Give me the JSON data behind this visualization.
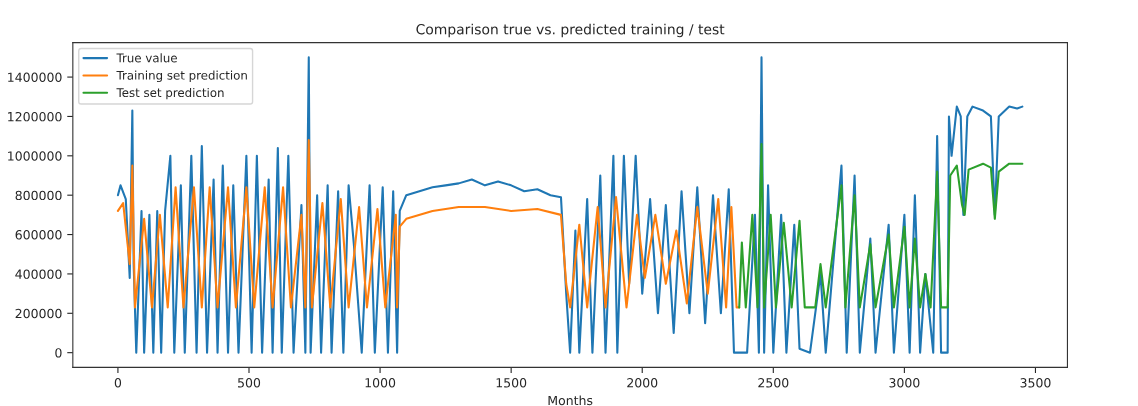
{
  "chart_data": {
    "type": "line",
    "title": "Comparison true vs. predicted training / test",
    "xlabel": "Months",
    "xlim": [
      -172,
      3622
    ],
    "xticks": [
      0,
      500,
      1000,
      1500,
      2000,
      2500,
      3000,
      3500
    ],
    "ylim": [
      -75000,
      1575000
    ],
    "yticks": [
      0,
      200000,
      400000,
      600000,
      800000,
      1000000,
      1200000,
      1400000
    ],
    "legend": "top left",
    "grid": false,
    "series": [
      {
        "name": "True value",
        "color": "#1f77b4",
        "x": [
          0,
          10,
          30,
          45,
          55,
          60,
          70,
          90,
          100,
          120,
          135,
          150,
          165,
          180,
          200,
          215,
          240,
          255,
          280,
          300,
          320,
          340,
          365,
          380,
          400,
          420,
          440,
          460,
          490,
          510,
          530,
          550,
          575,
          590,
          610,
          625,
          650,
          670,
          700,
          715,
          728,
          735,
          760,
          775,
          800,
          815,
          840,
          860,
          880,
          900,
          930,
          960,
          980,
          1010,
          1030,
          1050,
          1065,
          1075,
          1100,
          1150,
          1200,
          1250,
          1300,
          1350,
          1400,
          1450,
          1500,
          1550,
          1600,
          1650,
          1690,
          1710,
          1725,
          1745,
          1760,
          1790,
          1810,
          1840,
          1860,
          1890,
          1905,
          1930,
          1950,
          1975,
          2000,
          2030,
          2060,
          2090,
          2120,
          2150,
          2180,
          2210,
          2240,
          2270,
          2300,
          2330,
          2350,
          2400,
          2430,
          2445,
          2455,
          2465,
          2480,
          2500,
          2530,
          2550,
          2580,
          2600,
          2640,
          2680,
          2700,
          2760,
          2780,
          2810,
          2830,
          2870,
          2890,
          2940,
          2960,
          3000,
          3020,
          3040,
          3060,
          3080,
          3110,
          3125,
          3140,
          3165,
          3170,
          3180,
          3200,
          3215,
          3225,
          3240,
          3260,
          3300,
          3330,
          3345,
          3360,
          3400,
          3430,
          3450
        ],
        "values": [
          800000,
          850000,
          780000,
          380000,
          1230000,
          450000,
          0,
          720000,
          0,
          700000,
          0,
          720000,
          0,
          720000,
          1000000,
          0,
          850000,
          0,
          1000000,
          0,
          1050000,
          0,
          880000,
          0,
          950000,
          0,
          850000,
          0,
          1000000,
          0,
          1000000,
          0,
          880000,
          0,
          1040000,
          0,
          1000000,
          0,
          750000,
          0,
          1500000,
          0,
          800000,
          0,
          850000,
          0,
          820000,
          0,
          850000,
          550000,
          0,
          850000,
          0,
          840000,
          0,
          820000,
          0,
          720000,
          800000,
          820000,
          840000,
          850000,
          860000,
          880000,
          850000,
          870000,
          850000,
          820000,
          830000,
          800000,
          790000,
          300000,
          0,
          620000,
          0,
          780000,
          0,
          900000,
          0,
          1000000,
          0,
          1000000,
          350000,
          1000000,
          300000,
          780000,
          200000,
          750000,
          100000,
          820000,
          200000,
          840000,
          150000,
          800000,
          200000,
          830000,
          0,
          0,
          700000,
          0,
          1500000,
          0,
          850000,
          0,
          700000,
          0,
          650000,
          20000,
          0,
          400000,
          0,
          950000,
          0,
          900000,
          0,
          580000,
          0,
          650000,
          0,
          700000,
          0,
          800000,
          0,
          400000,
          0,
          1100000,
          0,
          0,
          1200000,
          1000000,
          1250000,
          1200000,
          700000,
          1200000,
          1250000,
          1230000,
          1200000,
          700000,
          1200000,
          1250000,
          1240000,
          1250000
        ]
      },
      {
        "name": "Training set prediction",
        "color": "#ff7f0e",
        "x": [
          0,
          20,
          45,
          55,
          65,
          100,
          130,
          160,
          190,
          220,
          250,
          290,
          320,
          350,
          380,
          420,
          450,
          490,
          520,
          560,
          590,
          630,
          660,
          700,
          715,
          728,
          740,
          780,
          810,
          850,
          880,
          920,
          950,
          990,
          1020,
          1060,
          1065,
          1075,
          1100,
          1200,
          1300,
          1400,
          1500,
          1600,
          1690,
          1710,
          1725,
          1760,
          1790,
          1830,
          1860,
          1900,
          1940,
          1980,
          2010,
          2050,
          2090,
          2130,
          2170,
          2210,
          2250,
          2290,
          2320,
          2340,
          2360,
          2370
        ],
        "values": [
          720000,
          760000,
          450000,
          950000,
          230000,
          680000,
          230000,
          700000,
          230000,
          840000,
          230000,
          840000,
          230000,
          840000,
          230000,
          840000,
          230000,
          840000,
          230000,
          840000,
          230000,
          840000,
          230000,
          700000,
          230000,
          1080000,
          230000,
          760000,
          230000,
          780000,
          230000,
          740000,
          230000,
          730000,
          230000,
          700000,
          230000,
          640000,
          680000,
          720000,
          740000,
          740000,
          720000,
          730000,
          700000,
          350000,
          230000,
          650000,
          230000,
          740000,
          230000,
          790000,
          230000,
          700000,
          380000,
          700000,
          350000,
          620000,
          250000,
          740000,
          300000,
          780000,
          230000,
          740000,
          230000,
          230000
        ]
      },
      {
        "name": "Test set prediction",
        "color": "#2ca02c",
        "x": [
          2370,
          2380,
          2395,
          2420,
          2440,
          2455,
          2465,
          2490,
          2510,
          2540,
          2570,
          2600,
          2620,
          2660,
          2680,
          2700,
          2760,
          2775,
          2810,
          2830,
          2870,
          2890,
          2940,
          2960,
          3000,
          3020,
          3040,
          3060,
          3080,
          3100,
          3125,
          3140,
          3165,
          3175,
          3200,
          3220,
          3230,
          3245,
          3300,
          3330,
          3345,
          3360,
          3400,
          3450
        ],
        "values": [
          230000,
          560000,
          230000,
          700000,
          230000,
          1060000,
          230000,
          700000,
          230000,
          660000,
          230000,
          670000,
          230000,
          230000,
          450000,
          230000,
          850000,
          230000,
          800000,
          230000,
          550000,
          230000,
          600000,
          230000,
          640000,
          230000,
          580000,
          230000,
          400000,
          230000,
          920000,
          230000,
          230000,
          900000,
          950000,
          750000,
          700000,
          930000,
          960000,
          940000,
          680000,
          920000,
          960000,
          960000
        ]
      }
    ]
  }
}
